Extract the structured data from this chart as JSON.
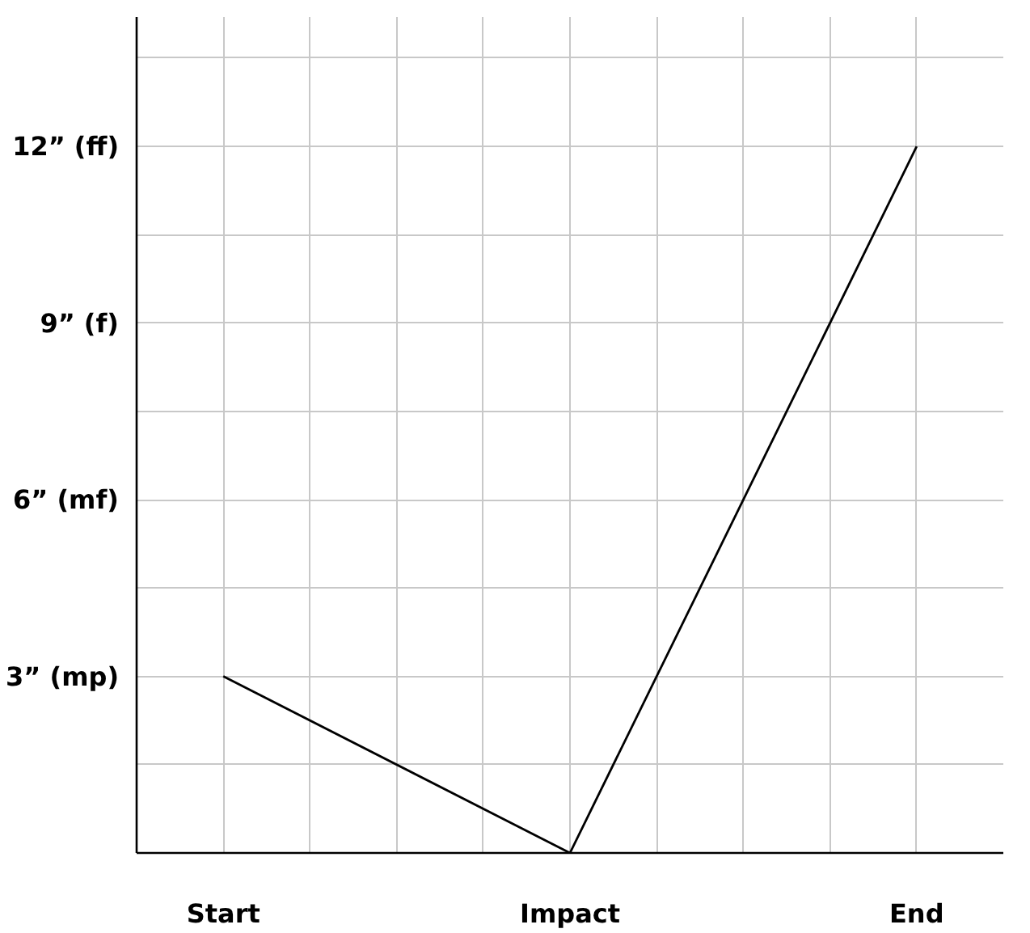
{
  "chart_data": {
    "type": "line",
    "categories": [
      "Start",
      "Impact",
      "End"
    ],
    "series": [
      {
        "color": "#000000",
        "values": [
          3,
          0,
          12
        ]
      }
    ],
    "ylim": [
      0,
      14.2
    ],
    "yticks": [
      {
        "value": 1.5,
        "label": null
      },
      {
        "value": 3,
        "label": "3” (mp)"
      },
      {
        "value": 4.5,
        "label": null
      },
      {
        "value": 6,
        "label": "6” (mf)"
      },
      {
        "value": 7.5,
        "label": null
      },
      {
        "value": 9,
        "label": "9” (f)"
      },
      {
        "value": 10.5,
        "label": null
      },
      {
        "value": 12,
        "label": "12” (ff)"
      },
      {
        "value": 13.5,
        "label": null
      }
    ],
    "grid": true,
    "marker": "none",
    "line_style": "solid"
  }
}
